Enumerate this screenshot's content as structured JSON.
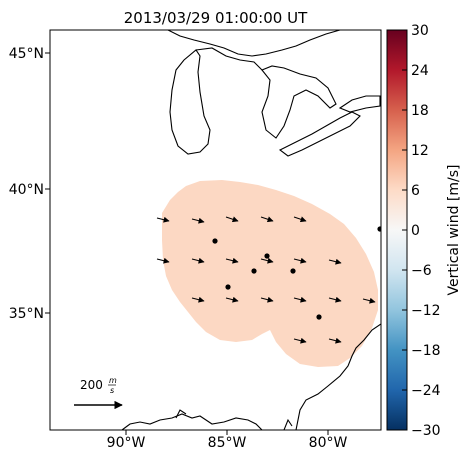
{
  "title": "2013/03/29 01:00:00 UT",
  "map": {
    "lat_labels": [
      "45°N",
      "40°N",
      "35°N"
    ],
    "lon_labels": [
      "90°W",
      "85°W",
      "80°W"
    ],
    "region_color": "#fcd8c3"
  },
  "scale": {
    "value": "200",
    "unit_num": "m",
    "unit_den": "s"
  },
  "colorbar": {
    "label": "Vertical wind [m/s]",
    "ticks": [
      "30",
      "24",
      "18",
      "12",
      "6",
      "0",
      "−6",
      "−12",
      "−18",
      "−24",
      "−30"
    ],
    "colors": [
      "#67001f",
      "#b2182b",
      "#d6604d",
      "#f4a582",
      "#fddbc7",
      "#f7f7f7",
      "#d1e5f0",
      "#92c5de",
      "#4393c3",
      "#2166ac",
      "#053061"
    ]
  }
}
